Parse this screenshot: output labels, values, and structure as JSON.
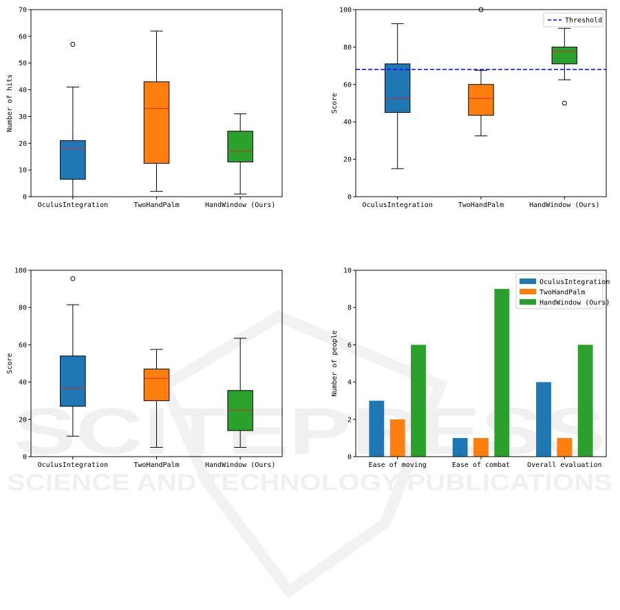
{
  "watermark": {
    "line1": "SCITEPRESS",
    "line2": "SCIENCE AND TECHNOLOGY PUBLICATIONS"
  },
  "chart_data": [
    {
      "type": "box",
      "ylabel": "Number of hits",
      "ylim": [
        0,
        70
      ],
      "yticks": [
        0,
        10,
        20,
        30,
        40,
        50,
        60,
        70
      ],
      "categories": [
        "OculusIntegration",
        "TwoHandPalm",
        "HandWindow (Ours)"
      ],
      "colors": [
        "#1f77b4",
        "#ff7f0e",
        "#2ca02c"
      ],
      "boxes": [
        {
          "min": 0,
          "q1": 6.5,
          "median": 18,
          "q3": 21,
          "max": 41,
          "outliers": [
            57
          ]
        },
        {
          "min": 2,
          "q1": 12.5,
          "median": 33,
          "q3": 43,
          "max": 62,
          "outliers": []
        },
        {
          "min": 1,
          "q1": 13,
          "median": 17,
          "q3": 24.5,
          "max": 31,
          "outliers": []
        }
      ]
    },
    {
      "type": "box",
      "ylabel": "Score",
      "ylim": [
        0,
        100
      ],
      "yticks": [
        0,
        20,
        40,
        60,
        80,
        100
      ],
      "categories": [
        "OculusIntegration",
        "TwoHandPalm",
        "HandWindow (Ours)"
      ],
      "colors": [
        "#1f77b4",
        "#ff7f0e",
        "#2ca02c"
      ],
      "boxes": [
        {
          "min": 15,
          "q1": 45,
          "median": 52.5,
          "q3": 71,
          "max": 92.5,
          "outliers": []
        },
        {
          "min": 32.5,
          "q1": 43.5,
          "median": 52.5,
          "q3": 60,
          "max": 67.5,
          "outliers": [
            100
          ]
        },
        {
          "min": 62.5,
          "q1": 71,
          "median": 77.5,
          "q3": 80,
          "max": 90,
          "outliers": [
            50
          ]
        }
      ],
      "threshold": {
        "value": 68,
        "label": "Threshold",
        "color": "#0000ff"
      },
      "legend": "top-right"
    },
    {
      "type": "box",
      "ylabel": "Score",
      "ylim": [
        0,
        100
      ],
      "yticks": [
        0,
        20,
        40,
        60,
        80,
        100
      ],
      "categories": [
        "OculusIntegration",
        "TwoHandPalm",
        "HandWindow (Ours)"
      ],
      "colors": [
        "#1f77b4",
        "#ff7f0e",
        "#2ca02c"
      ],
      "boxes": [
        {
          "min": 11,
          "q1": 27,
          "median": 36.5,
          "q3": 54,
          "max": 81.5,
          "outliers": [
            95.5
          ]
        },
        {
          "min": 5,
          "q1": 30,
          "median": 42,
          "q3": 47,
          "max": 57.5,
          "outliers": []
        },
        {
          "min": 5,
          "q1": 14,
          "median": 25,
          "q3": 35.5,
          "max": 63.5,
          "outliers": []
        }
      ]
    },
    {
      "type": "bar",
      "ylabel": "Number of people",
      "ylim": [
        0,
        10
      ],
      "yticks": [
        0,
        2,
        4,
        6,
        8,
        10
      ],
      "categories": [
        "Ease of moving",
        "Ease of combat",
        "Overall evaluation"
      ],
      "series": [
        {
          "name": "OculusIntegration",
          "color": "#1f77b4",
          "values": [
            3,
            1,
            4
          ]
        },
        {
          "name": "TwoHandPalm",
          "color": "#ff7f0e",
          "values": [
            2,
            1,
            1
          ]
        },
        {
          "name": "HandWindow (Ours)",
          "color": "#2ca02c",
          "values": [
            6,
            9,
            6
          ]
        }
      ],
      "legend": "top-right"
    }
  ]
}
